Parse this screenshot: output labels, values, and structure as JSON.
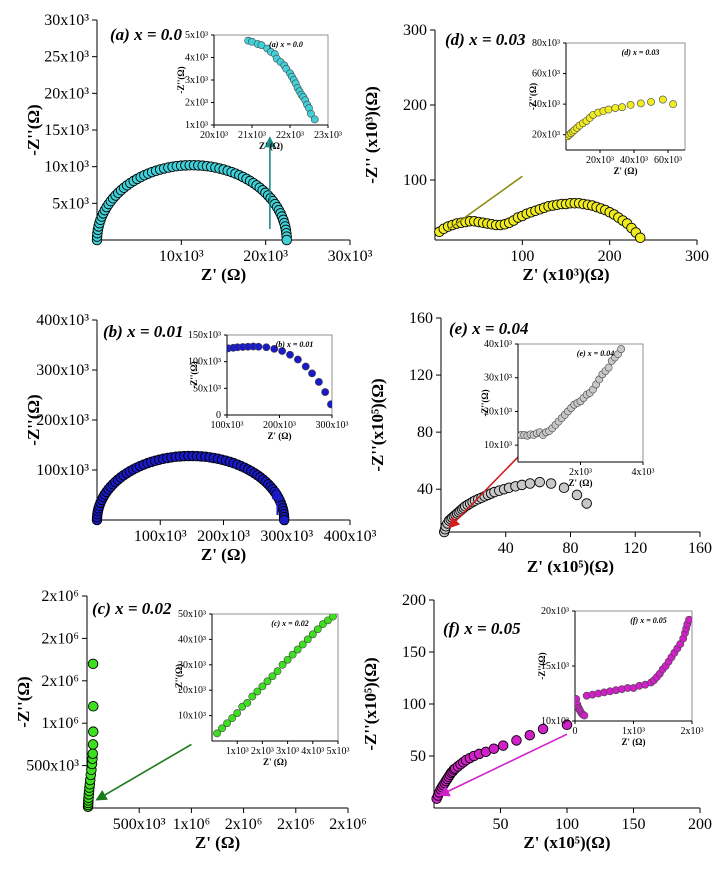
{
  "chart_data": [
    {
      "type": "scatter",
      "id": "a",
      "title": "(a) x = 0.0",
      "color": "#40d0d8",
      "xlabel": "Z' (Ω)",
      "ylabel": "-Z''(Ω)",
      "xlim": [
        0,
        30000
      ],
      "ylim": [
        0,
        30000
      ],
      "xticks": [
        10000,
        20000,
        30000
      ],
      "xtick_labels": [
        "10x10³",
        "20x10³",
        "30x10³"
      ],
      "yticks": [
        5000,
        10000,
        15000,
        20000,
        25000,
        30000
      ],
      "ytick_labels": [
        "5x10³",
        "10x10³",
        "15x10³",
        "20x10³",
        "25x10³",
        "30x10³"
      ],
      "shape": "semicircle",
      "semicircle": {
        "x0": 0,
        "x1": 22500,
        "height": 10200,
        "n": 70
      },
      "arrow": {
        "from": [
          20500,
          1500
        ],
        "to": [
          20500,
          14000
        ],
        "color": "#1a8a8a"
      },
      "inset": {
        "title": "(a) x = 0.0",
        "xlabel": "Z' (Ω)",
        "ylabel": "-Z''(Ω)",
        "xlim": [
          20000,
          23000
        ],
        "ylim": [
          1000,
          5000
        ],
        "xticks": [
          20000,
          21000,
          22000,
          23000
        ],
        "xtick_labels": [
          "20x10³",
          "21x10³",
          "22x10³",
          "23x10³"
        ],
        "yticks": [
          1000,
          2000,
          3000,
          4000,
          5000
        ],
        "ytick_labels": [
          "1x10³",
          "2x10³",
          "3x10³",
          "4x10³",
          "5x10³"
        ],
        "x": [
          20900,
          21000,
          21150,
          21250,
          21400,
          21500,
          21600,
          21650,
          21750,
          21850,
          21900,
          22000,
          22050,
          22100,
          22150,
          22200,
          22250,
          22300,
          22350,
          22400,
          22450,
          22500,
          22550,
          22650
        ],
        "y": [
          4750,
          4700,
          4600,
          4550,
          4400,
          4250,
          4150,
          3950,
          3800,
          3650,
          3500,
          3300,
          3150,
          3000,
          2850,
          2650,
          2500,
          2350,
          2250,
          2100,
          1900,
          1750,
          1500,
          1250
        ]
      }
    },
    {
      "type": "scatter",
      "id": "b",
      "title": "(b) x = 0.01",
      "color": "#1a1ac8",
      "xlabel": "Z' (Ω)",
      "ylabel": "-Z''(Ω)",
      "xlim": [
        0,
        400000
      ],
      "ylim": [
        0,
        400000
      ],
      "xticks": [
        100000,
        200000,
        300000,
        400000
      ],
      "xtick_labels": [
        "100x10³",
        "200x10³",
        "300x10³",
        "400x10³"
      ],
      "yticks": [
        100000,
        200000,
        300000,
        400000
      ],
      "ytick_labels": [
        "100x10³",
        "200x10³",
        "300x10³",
        "400x10³"
      ],
      "shape": "semicircle",
      "semicircle": {
        "x0": 0,
        "x1": 296000,
        "height": 128000,
        "n": 70
      },
      "arrow": {
        "from": [
          285000,
          10000
        ],
        "to": [
          285000,
          62000
        ],
        "color": "#1a1ac8"
      },
      "inset": {
        "title": "(b) x = 0.01",
        "xlabel": "Z' (Ω)",
        "ylabel": "-Z''(Ω)",
        "xlim": [
          100000,
          300000
        ],
        "ylim": [
          0,
          150000
        ],
        "xticks": [
          100000,
          200000,
          300000
        ],
        "xtick_labels": [
          "100x10³",
          "200x10³",
          "300x10³"
        ],
        "yticks": [
          0,
          50000,
          100000,
          150000
        ],
        "ytick_labels": [
          "0",
          "50x10³",
          "100x10³",
          "150x10³"
        ],
        "x": [
          102000,
          112000,
          120000,
          130000,
          140000,
          150000,
          160000,
          175000,
          190000,
          205000,
          220000,
          235000,
          250000,
          262000,
          275000,
          287000,
          298000
        ],
        "y": [
          125000,
          126000,
          127000,
          127500,
          128000,
          128500,
          128000,
          127000,
          124000,
          120000,
          113000,
          104000,
          91000,
          78000,
          62000,
          43000,
          20000
        ]
      }
    },
    {
      "type": "scatter",
      "id": "c",
      "title": "(c) x = 0.02",
      "color": "#3de01f",
      "xlabel": "Z' (Ω)",
      "ylabel": "-Z''(Ω)",
      "xlim": [
        0,
        2500000
      ],
      "ylim": [
        0,
        2500000
      ],
      "xticks": [
        500000,
        1000000,
        1500000,
        2000000,
        2500000
      ],
      "xtick_labels": [
        "500x10³",
        "1x10⁶",
        "2x10⁶",
        "2x10⁶",
        "2x10⁶"
      ],
      "yticks": [
        500000,
        1000000,
        1500000,
        2000000,
        2500000
      ],
      "ytick_labels": [
        "500x10³",
        "1x10⁶",
        "2x10⁶",
        "2x10⁶",
        "2x10⁶"
      ],
      "x": [
        10000,
        11000,
        12000,
        13000,
        15000,
        17000,
        20000,
        23000,
        27000,
        31000,
        36000,
        42000,
        48000,
        52000,
        55000,
        58000,
        60000,
        60000,
        58000
      ],
      "y": [
        15000,
        35000,
        60000,
        90000,
        120000,
        160000,
        200000,
        240000,
        280000,
        330000,
        390000,
        450000,
        520000,
        580000,
        640000,
        750000,
        900000,
        1200000,
        1700000
      ],
      "arrow": {
        "from": [
          1000000,
          750000
        ],
        "to": [
          90000,
          95000
        ],
        "color": "#1a7a1a"
      },
      "inset": {
        "title": "(c) x = 0.02",
        "xlabel": "Z' (Ω)",
        "ylabel": "-Z''(Ω)",
        "xlim": [
          0,
          5000
        ],
        "ylim": [
          0,
          50000
        ],
        "xticks": [
          1000,
          2000,
          3000,
          4000,
          5000
        ],
        "xtick_labels": [
          "1x10³",
          "2x10³",
          "3x10³",
          "4x10³",
          "5x10³"
        ],
        "yticks": [
          10000,
          20000,
          30000,
          40000,
          50000
        ],
        "ytick_labels": [
          "10x10³",
          "20x10³",
          "30x10³",
          "40x10³",
          "50x10³"
        ],
        "x": [
          200,
          400,
          600,
          800,
          1000,
          1200,
          1400,
          1600,
          1800,
          2000,
          2200,
          2400,
          2600,
          2800,
          3000,
          3200,
          3400,
          3600,
          3800,
          4000,
          4200,
          4400,
          4600,
          4800
        ],
        "y": [
          3000,
          5000,
          7000,
          9000,
          11000,
          13500,
          15000,
          17500,
          19500,
          21500,
          23500,
          25500,
          27500,
          30000,
          32000,
          34000,
          36000,
          38000,
          40000,
          42000,
          44000,
          46000,
          47500,
          49000
        ]
      }
    },
    {
      "type": "scatter",
      "id": "d",
      "title": "(d) x = 0.03",
      "color": "#f0ec20",
      "xlabel": "Z' (x10³)(Ω)",
      "ylabel": "-Z'' (x10³)(Ω)",
      "xlim": [
        0,
        300
      ],
      "ylim": [
        20,
        300
      ],
      "xticks": [
        100,
        200,
        300
      ],
      "xtick_labels": [
        "100",
        "200",
        "300"
      ],
      "yticks": [
        100,
        200,
        300
      ],
      "ytick_labels": [
        "100",
        "200",
        "300"
      ],
      "x": [
        5,
        10,
        15,
        20,
        25,
        30,
        35,
        40,
        45,
        50,
        55,
        60,
        65,
        70,
        75,
        80,
        85,
        90,
        95,
        100,
        105,
        110,
        115,
        120,
        125,
        130,
        135,
        140,
        145,
        150,
        155,
        160,
        165,
        170,
        175,
        180,
        185,
        190,
        195,
        200,
        205,
        210,
        215,
        220,
        225,
        230,
        235
      ],
      "y": [
        31,
        35,
        38,
        40,
        42,
        43,
        44,
        45,
        45,
        44,
        43,
        42,
        41,
        40,
        40,
        41,
        43,
        46,
        50,
        52,
        55,
        57,
        59,
        61,
        63,
        65,
        66,
        67,
        68,
        68,
        69,
        69,
        69,
        68,
        67,
        66,
        64,
        62,
        60,
        57,
        54,
        50,
        46,
        42,
        36,
        30,
        23
      ],
      "arrow": {
        "from": [
          100,
          105
        ],
        "to": [
          15,
          34
        ],
        "color": "#8a8a10",
        "head": false
      },
      "inset": {
        "title": "(d) x = 0.03",
        "xlabel": "Z' (Ω)",
        "ylabel": "-Z''(Ω)",
        "xlim": [
          0,
          70000
        ],
        "ylim": [
          10000,
          80000
        ],
        "xticks": [
          20000,
          40000,
          60000
        ],
        "xtick_labels": [
          "20x10³",
          "40x10³",
          "60x10³"
        ],
        "yticks": [
          20000,
          40000,
          60000,
          80000
        ],
        "ytick_labels": [
          "20x10³",
          "40x10³",
          "60x10³",
          "80x10³"
        ],
        "x": [
          1000,
          2000,
          3000,
          4000,
          5000,
          6500,
          8000,
          10000,
          12000,
          14000,
          16000,
          19000,
          22000,
          25000,
          29000,
          33000,
          38000,
          44000,
          50000,
          57000,
          63000
        ],
        "y": [
          19000,
          20000,
          21000,
          22000,
          23000,
          24500,
          26000,
          27500,
          29000,
          31000,
          33000,
          34500,
          35500,
          36500,
          37500,
          38000,
          39500,
          40500,
          41500,
          43000,
          40000
        ]
      }
    },
    {
      "type": "scatter",
      "id": "e",
      "title": "(e) x = 0.04",
      "color": "#c8c8c8",
      "xlabel": "Z' (x10⁵)(Ω)",
      "ylabel": "-Z''(x10⁵)(Ω)",
      "xlim": [
        0,
        160
      ],
      "ylim": [
        10,
        160
      ],
      "xticks": [
        40,
        80,
        120,
        160
      ],
      "xtick_labels": [
        "40",
        "80",
        "120",
        "160"
      ],
      "yticks": [
        40,
        80,
        120,
        160
      ],
      "ytick_labels": [
        "40",
        "80",
        "120",
        "160"
      ],
      "x": [
        2,
        2.5,
        3,
        4,
        5,
        6,
        7,
        8,
        9,
        10,
        11,
        12,
        13,
        14,
        15,
        16.5,
        18,
        19.5,
        21,
        23,
        25,
        27,
        29,
        31,
        33,
        36,
        39,
        42,
        46,
        50,
        55,
        61,
        68,
        76,
        84,
        90
      ],
      "y": [
        10,
        12,
        14,
        16,
        18,
        19,
        20,
        21,
        22,
        23,
        24,
        25,
        26,
        27,
        28,
        29,
        30,
        31,
        32,
        33,
        34,
        35,
        36,
        37,
        38,
        39,
        40,
        41,
        42,
        43,
        44,
        45,
        44,
        41,
        36,
        30
      ],
      "arrow": {
        "from": [
          60,
          77
        ],
        "to": [
          5,
          13
        ],
        "color": "#d02020"
      },
      "inset": {
        "title": "(e) x = 0.04",
        "xlabel": "Z' (Ω)",
        "ylabel": "-Z''(Ω)",
        "xlim": [
          0,
          4000
        ],
        "ylim": [
          5000,
          40000
        ],
        "xticks": [
          2000,
          4000
        ],
        "xtick_labels": [
          "2x10³",
          "4x10³"
        ],
        "yticks": [
          10000,
          20000,
          30000,
          40000
        ],
        "ytick_labels": [
          "10x10³",
          "20x10³",
          "30x10³",
          "40x10³"
        ],
        "x": [
          100,
          200,
          300,
          400,
          500,
          600,
          700,
          800,
          900,
          1000,
          1100,
          1200,
          1300,
          1400,
          1500,
          1600,
          1700,
          1800,
          1900,
          2000,
          2100,
          2200,
          2300,
          2400,
          2500,
          2600,
          2700,
          2800,
          2900,
          3000,
          3100,
          3200,
          3300
        ],
        "y": [
          13000,
          13000,
          12800,
          13200,
          13000,
          13500,
          13800,
          13000,
          13800,
          14200,
          15000,
          16000,
          17000,
          18000,
          19000,
          20000,
          21000,
          22000,
          22500,
          23000,
          24000,
          25000,
          25500,
          26500,
          28000,
          29500,
          31000,
          32000,
          33000,
          35000,
          36000,
          37000,
          38500
        ]
      }
    },
    {
      "type": "scatter",
      "id": "f",
      "title": "(f) x = 0.05",
      "color": "#d020c8",
      "xlabel": "Z' (x10⁵)(Ω)",
      "ylabel": "-Z''(x10⁵)(Ω)",
      "xlim": [
        0,
        200
      ],
      "ylim": [
        0,
        200
      ],
      "xticks": [
        50,
        100,
        150,
        200
      ],
      "xtick_labels": [
        "50",
        "100",
        "150",
        "200"
      ],
      "yticks": [
        50,
        100,
        150,
        200
      ],
      "ytick_labels": [
        "50",
        "100",
        "150",
        "200"
      ],
      "x": [
        2,
        3,
        4,
        5,
        6,
        7,
        8,
        9,
        10,
        11,
        12,
        13,
        14,
        15,
        16,
        18,
        20,
        22,
        24,
        27,
        30,
        34,
        39,
        45,
        52,
        62,
        72,
        82,
        100
      ],
      "y": [
        9,
        12,
        15,
        18,
        20,
        22,
        24,
        26,
        28,
        30,
        32,
        34,
        35,
        37,
        38,
        40,
        42,
        44,
        46,
        48,
        50,
        52,
        54,
        57,
        60,
        65,
        70,
        76,
        80
      ],
      "arrow": {
        "from": [
          100,
          71
        ],
        "to": [
          4,
          12
        ],
        "color": "#d020c8"
      },
      "inset": {
        "title": "(f) x = 0.05",
        "xlabel": "Z' (Ω)",
        "ylabel": "-Z''(Ω)",
        "xlim": [
          0,
          2000
        ],
        "ylim": [
          10000,
          20000
        ],
        "xticks": [
          0,
          1000,
          2000
        ],
        "xtick_labels": [
          "0",
          "1x10³",
          "2x10³"
        ],
        "yticks": [
          10000,
          15000,
          20000
        ],
        "ytick_labels": [
          "10x10³",
          "15x10³",
          "20x10³"
        ],
        "x": [
          20,
          40,
          60,
          80,
          100,
          130,
          160,
          200,
          300,
          400,
          500,
          600,
          700,
          800,
          900,
          1000,
          1100,
          1200,
          1300,
          1350,
          1400,
          1450,
          1500,
          1550,
          1600,
          1650,
          1700,
          1750,
          1800,
          1850,
          1880,
          1900,
          1920,
          1950
        ],
        "y": [
          12000,
          11500,
          11200,
          11000,
          10800,
          10600,
          10500,
          12300,
          12400,
          12500,
          12600,
          12700,
          12800,
          12900,
          13000,
          13000,
          13200,
          13300,
          13500,
          13700,
          14000,
          14300,
          14700,
          15000,
          15400,
          15800,
          16200,
          16600,
          17000,
          17500,
          18000,
          18400,
          18800,
          19200
        ]
      }
    }
  ]
}
